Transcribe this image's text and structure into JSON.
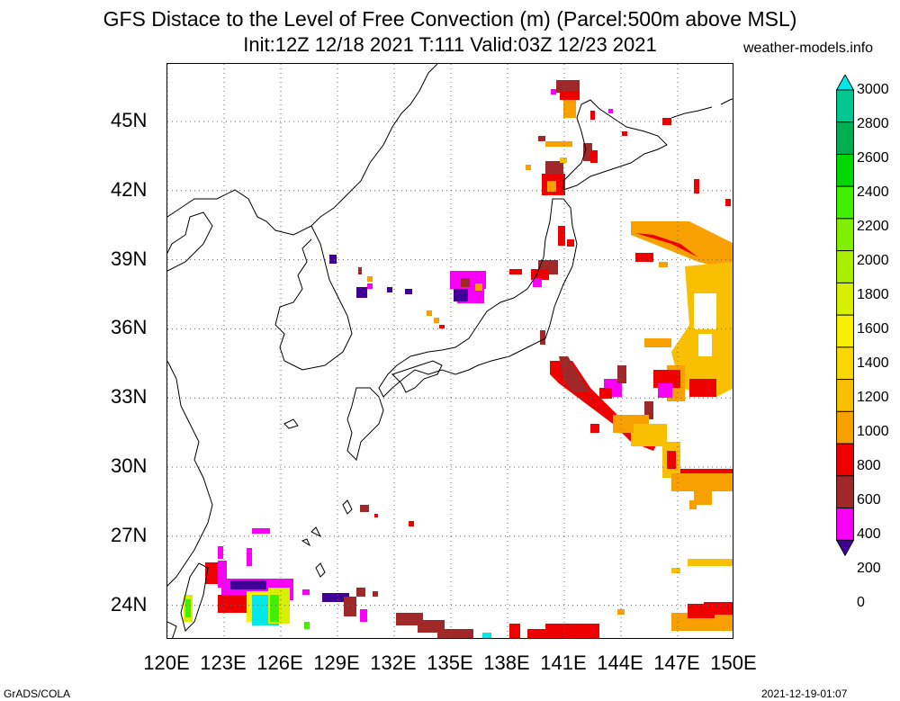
{
  "header": {
    "title_line1": "GFS Distace to the Level of Free Convection (m) (Parcel:500m above MSL)",
    "title_line2": "Init:12Z 12/18 2021 T:111 Valid:03Z 12/23 2021",
    "site": "weather-models.info"
  },
  "footer": {
    "left": "GrADS/COLA",
    "right": "2021-12-19-01:07"
  },
  "map": {
    "lat_labels": [
      "45N",
      "42N",
      "39N",
      "36N",
      "33N",
      "30N",
      "27N",
      "24N"
    ],
    "lon_labels": [
      "120E",
      "123E",
      "126E",
      "129E",
      "132E",
      "135E",
      "138E",
      "141E",
      "144E",
      "147E",
      "150E"
    ],
    "lat_values": [
      45,
      42,
      39,
      36,
      33,
      30,
      27,
      24
    ],
    "lon_values": [
      120,
      123,
      126,
      129,
      132,
      135,
      138,
      141,
      144,
      147,
      150
    ],
    "lon_range": [
      120,
      150
    ],
    "lat_range": [
      22.5,
      47.5
    ],
    "grid": true
  },
  "colorbar": {
    "labels": [
      "3000",
      "2800",
      "2600",
      "2400",
      "2200",
      "2000",
      "1800",
      "1600",
      "1400",
      "1200",
      "1000",
      "800",
      "600",
      "400",
      "200",
      "0"
    ],
    "colors": [
      "#00e8e8",
      "#00c890",
      "#00b050",
      "#00d800",
      "#40f000",
      "#80f000",
      "#a8f000",
      "#d8f000",
      "#f8f000",
      "#f8d800",
      "#f8c000",
      "#f8a000",
      "#ee0000",
      "#a02828",
      "#f800f8",
      "#400098"
    ]
  }
}
